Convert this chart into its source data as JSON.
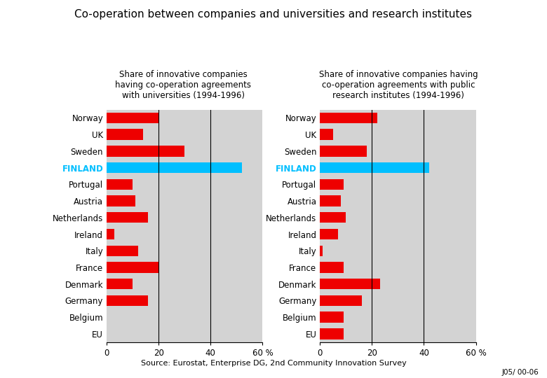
{
  "title": "Co-operation between companies and universities and research institutes",
  "subtitle_left": "Share of innovative companies\nhaving co-operation agreements\nwith universities (1994-1996)",
  "subtitle_right": "Share of innovative companies having\nco-operation agreements with public\nresearch institutes (1994-1996)",
  "countries": [
    "Norway",
    "UK",
    "Sweden",
    "FINLAND",
    "Portugal",
    "Austria",
    "Netherlands",
    "Ireland",
    "Italy",
    "France",
    "Denmark",
    "Germany",
    "Belgium",
    "EU"
  ],
  "values_left": [
    20,
    14,
    30,
    52,
    10,
    11,
    16,
    3,
    12,
    20,
    10,
    16,
    0,
    0
  ],
  "values_right": [
    22,
    5,
    18,
    42,
    9,
    8,
    10,
    7,
    1,
    9,
    23,
    16,
    9,
    9
  ],
  "finland_color": "#00BFFF",
  "bar_color": "#EE0000",
  "bg_color": "#D3D3D3",
  "finland_label_color": "#00BFFF",
  "source": "Source: Eurostat, Enterprise DG, 2nd Community Innovation Survey",
  "footnote": "J05/ 00-06",
  "xlim": [
    0,
    60
  ],
  "xticks": [
    0,
    20,
    40,
    60
  ],
  "vline_positions": [
    20,
    40
  ]
}
